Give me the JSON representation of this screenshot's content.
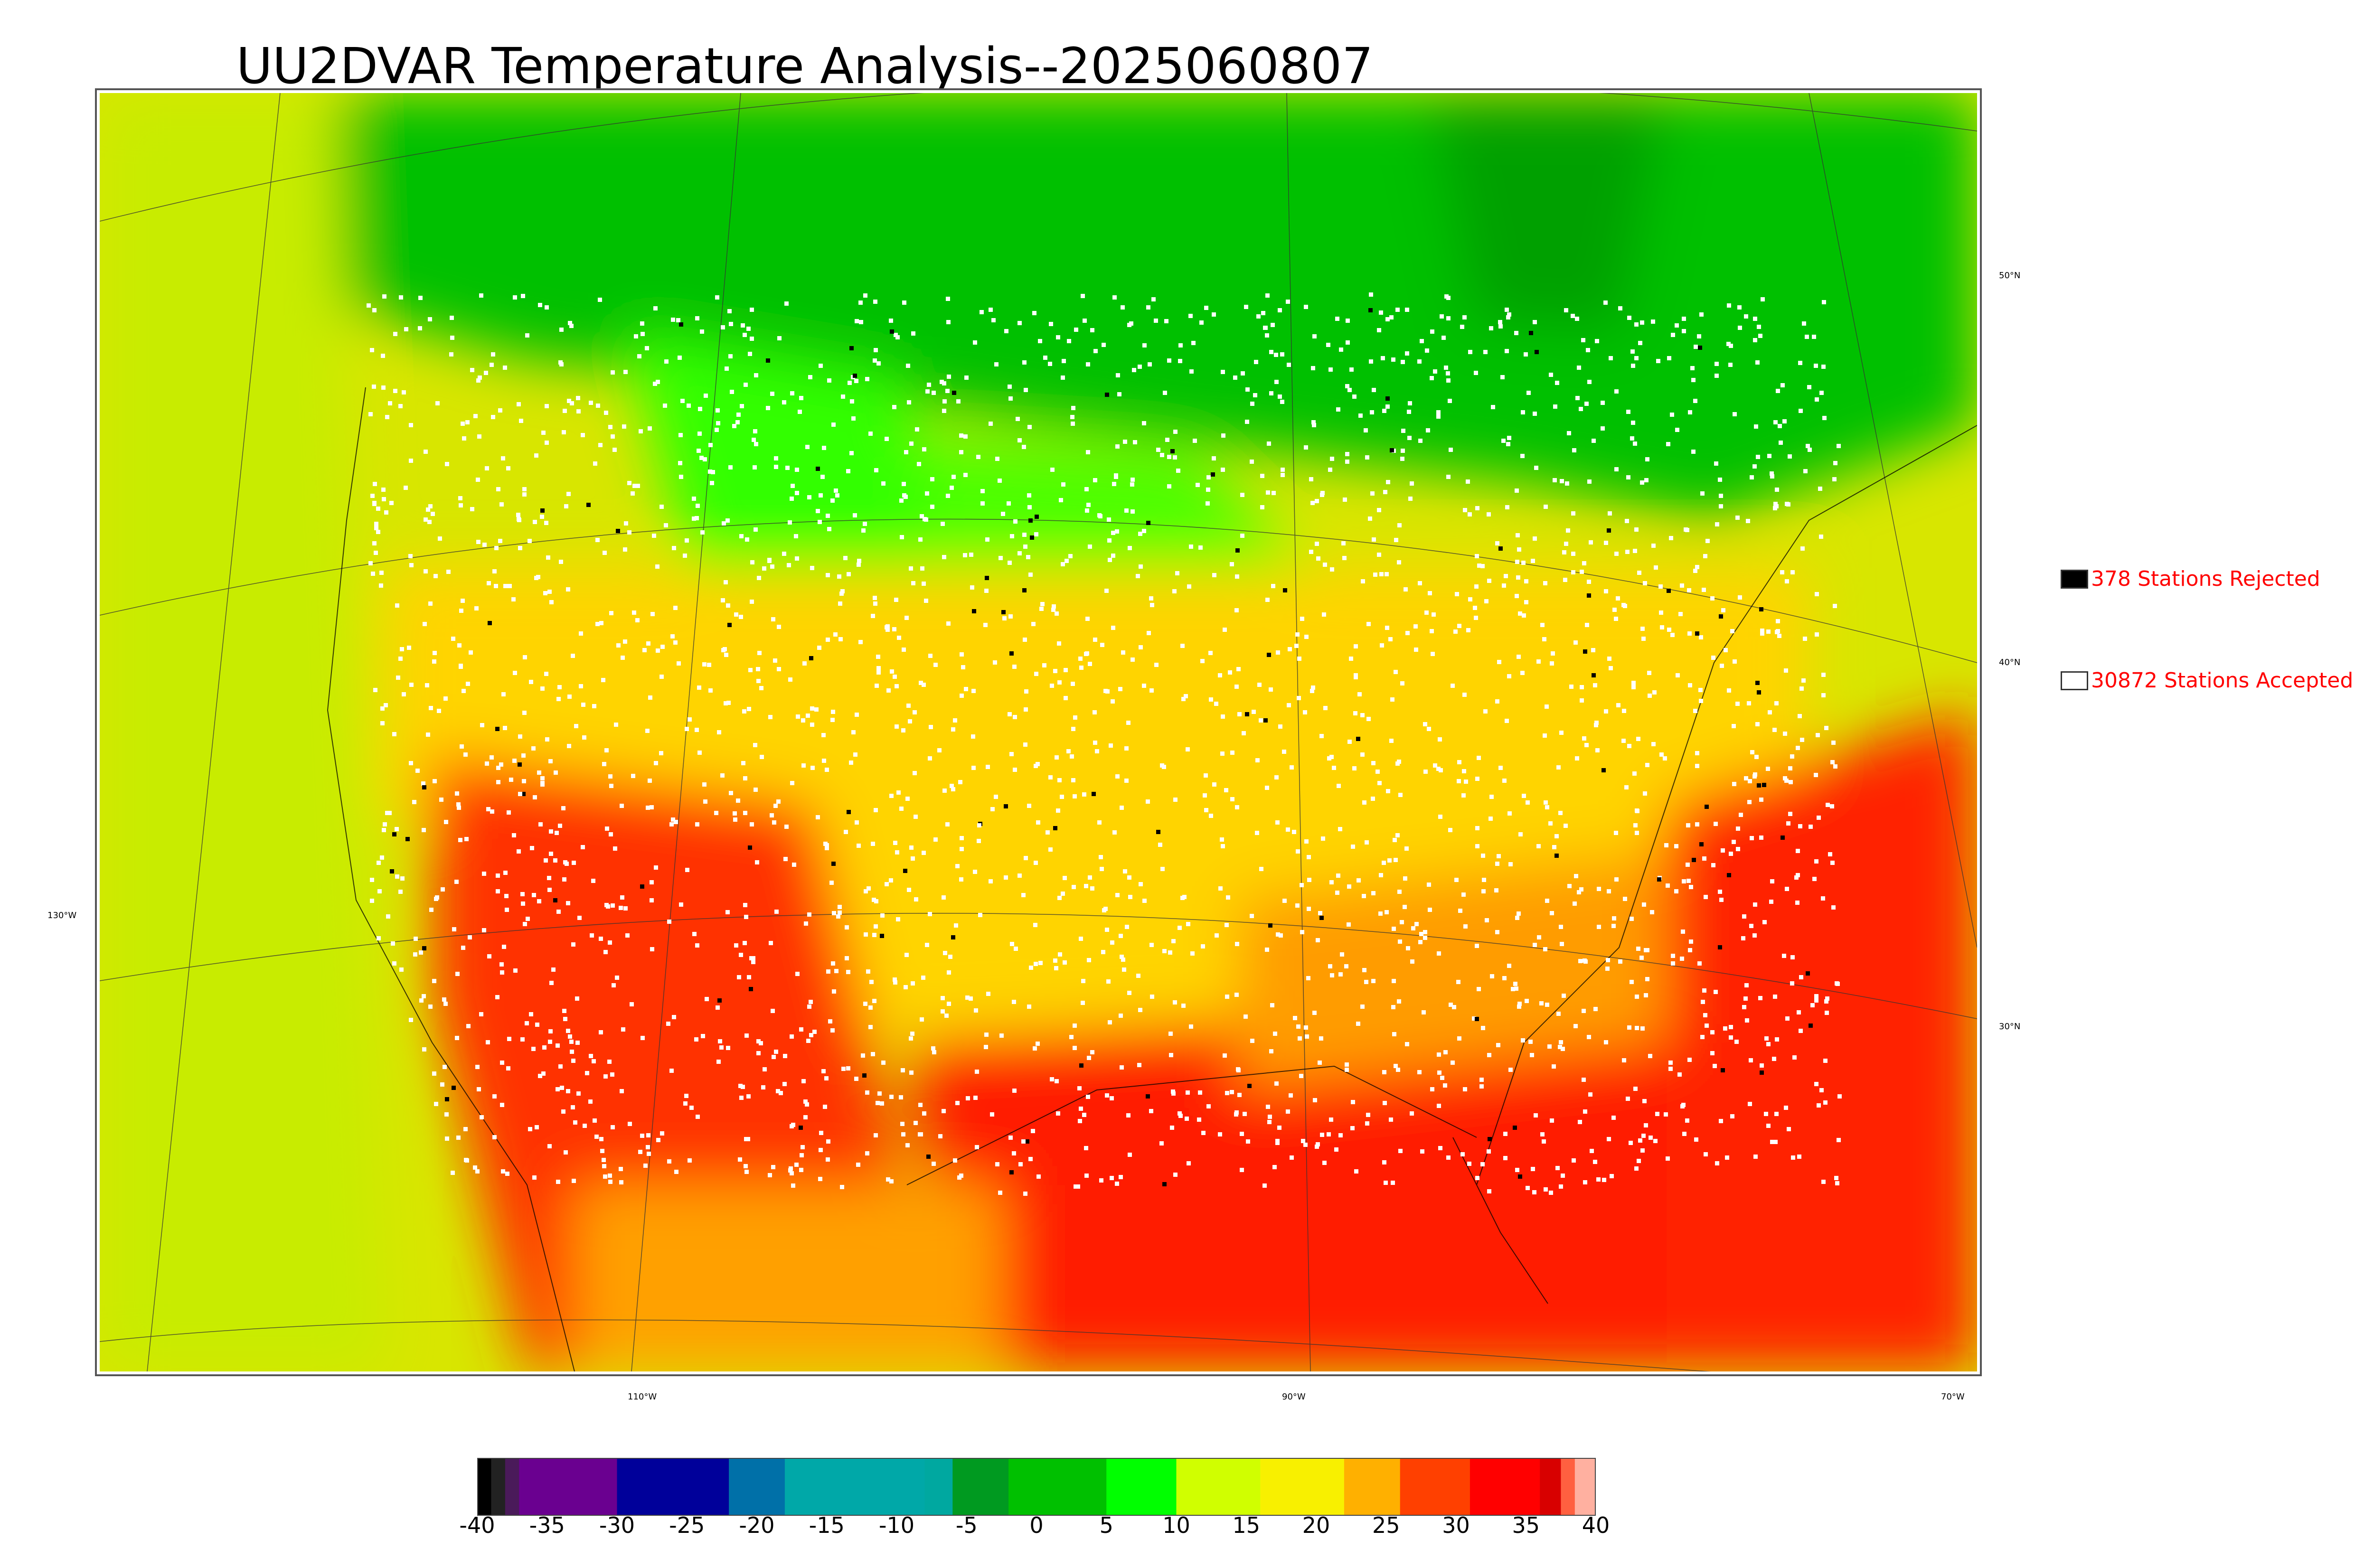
{
  "title": "UU2DVAR Temperature Analysis--2025060807",
  "map": {
    "lon_labels": [
      "130°W",
      "110°W",
      "90°W",
      "70°W"
    ],
    "lat_labels": [
      "50°N",
      "40°N",
      "30°N"
    ],
    "ocean_color": "#d8e600",
    "palette": {
      "cold": "#00c000",
      "cool": "#4cff00",
      "mild": "#c8f000",
      "warm": "#ffd400",
      "hot": "#ff8c00",
      "very_hot": "#ff1e00"
    }
  },
  "legend": {
    "rejected": {
      "label": "378 Stations Rejected",
      "swatch_color": "#000000"
    },
    "accepted": {
      "label": "30872 Stations Accepted",
      "swatch_color": "#ffffff"
    }
  },
  "colorbar": {
    "ticks": [
      "-40",
      "-35",
      "-30",
      "-25",
      "-20",
      "-15",
      "-10",
      "-5",
      "0",
      "5",
      "10",
      "15",
      "20",
      "25",
      "30",
      "35",
      "40"
    ],
    "min": -40,
    "max": 40,
    "stops": [
      {
        "value": -40,
        "color": "#000000"
      },
      {
        "value": -39,
        "color": "#222222"
      },
      {
        "value": -38,
        "color": "#4a1a5a"
      },
      {
        "value": -37,
        "color": "#6a0090"
      },
      {
        "value": -30,
        "color": "#00009a"
      },
      {
        "value": -22,
        "color": "#0070a8"
      },
      {
        "value": -18,
        "color": "#00a8a8"
      },
      {
        "value": -8,
        "color": "#00a8a0"
      },
      {
        "value": -6,
        "color": "#009a20"
      },
      {
        "value": -2,
        "color": "#00c000"
      },
      {
        "value": 5,
        "color": "#00ff00"
      },
      {
        "value": 10,
        "color": "#d0ff00"
      },
      {
        "value": 16,
        "color": "#f8f000"
      },
      {
        "value": 22,
        "color": "#ffb000"
      },
      {
        "value": 26,
        "color": "#ff4000"
      },
      {
        "value": 31,
        "color": "#ff0000"
      },
      {
        "value": 36,
        "color": "#d80000"
      },
      {
        "value": 37.5,
        "color": "#ff6040"
      },
      {
        "value": 38.5,
        "color": "#ffb0a0"
      },
      {
        "value": 40,
        "color": "#c0c0c0"
      }
    ]
  }
}
